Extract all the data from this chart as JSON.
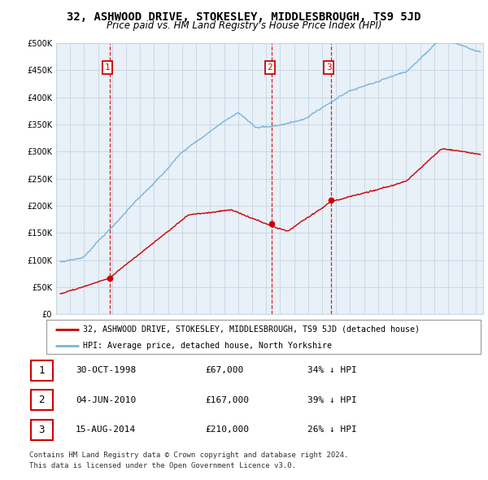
{
  "title": "32, ASHWOOD DRIVE, STOKESLEY, MIDDLESBROUGH, TS9 5JD",
  "subtitle": "Price paid vs. HM Land Registry's House Price Index (HPI)",
  "legend_line1": "32, ASHWOOD DRIVE, STOKESLEY, MIDDLESBROUGH, TS9 5JD (detached house)",
  "legend_line2": "HPI: Average price, detached house, North Yorkshire",
  "transactions": [
    {
      "label": "1",
      "date": "30-OCT-1998",
      "price": "£67,000",
      "pct": "34% ↓ HPI",
      "x_year": 1998.83,
      "y_value": 67000
    },
    {
      "label": "2",
      "date": "04-JUN-2010",
      "price": "£167,000",
      "pct": "39% ↓ HPI",
      "x_year": 2010.42,
      "y_value": 167000
    },
    {
      "label": "3",
      "date": "15-AUG-2014",
      "price": "£210,000",
      "pct": "26% ↓ HPI",
      "x_year": 2014.62,
      "y_value": 210000
    }
  ],
  "footer1": "Contains HM Land Registry data © Crown copyright and database right 2024.",
  "footer2": "This data is licensed under the Open Government Licence v3.0.",
  "hpi_color": "#7ab4d8",
  "price_color": "#cc0000",
  "vline_color": "#cc0000",
  "chart_bg": "#e8f0f8",
  "ylim": [
    0,
    500000
  ],
  "xlim_start": 1995.3,
  "xlim_end": 2025.5,
  "background_color": "#ffffff",
  "grid_color": "#c8d4e0"
}
